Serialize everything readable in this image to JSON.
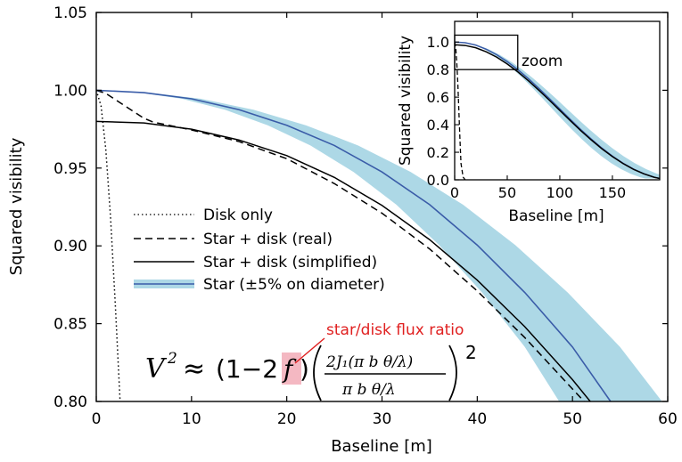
{
  "chart_data": [
    {
      "type": "line",
      "xlabel": "Baseline [m]",
      "ylabel": "Squared visibility",
      "xlim": [
        0,
        60
      ],
      "ylim": [
        0.8,
        1.05
      ],
      "xticks": [
        "0",
        "10",
        "20",
        "30",
        "40",
        "50",
        "60"
      ],
      "yticks": [
        "0.80",
        "0.85",
        "0.90",
        "0.95",
        "1.00",
        "1.05"
      ],
      "grid": false,
      "legend_position": "center-left",
      "series": [
        {
          "name": "Disk only",
          "style": "dotted",
          "color": "#000000",
          "x": [
            0,
            0.5,
            1,
            1.5,
            2,
            2.5,
            2.8
          ],
          "y": [
            1.0,
            0.99,
            0.962,
            0.918,
            0.862,
            0.8,
            0.765
          ]
        },
        {
          "name": "Star + disk (real)",
          "style": "dashed",
          "color": "#000000",
          "x": [
            0,
            1,
            2,
            3,
            4,
            5,
            6,
            8,
            10,
            15,
            20,
            25,
            30,
            35,
            40,
            45,
            50,
            52
          ],
          "y": [
            1.0,
            0.998,
            0.994,
            0.99,
            0.986,
            0.982,
            0.9795,
            0.977,
            0.9745,
            0.967,
            0.956,
            0.94,
            0.921,
            0.898,
            0.871,
            0.841,
            0.808,
            0.795
          ]
        },
        {
          "name": "Star + disk (simplified)",
          "style": "solid",
          "color": "#000000",
          "x": [
            0,
            5,
            10,
            15,
            20,
            25,
            30,
            35,
            40,
            45,
            50,
            52
          ],
          "y": [
            0.98,
            0.979,
            0.975,
            0.968,
            0.958,
            0.944,
            0.926,
            0.904,
            0.878,
            0.848,
            0.814,
            0.799
          ]
        },
        {
          "name": "Star (±5% on diameter)",
          "style": "solid",
          "color": "#3a5ca8",
          "band_color": "#add8e6",
          "x": [
            0,
            5,
            10,
            15,
            20,
            25,
            30,
            35,
            40,
            45,
            50,
            54
          ],
          "y": [
            1.0,
            0.9985,
            0.9945,
            0.9875,
            0.9775,
            0.9645,
            0.9475,
            0.9265,
            0.9005,
            0.87,
            0.835,
            0.8
          ],
          "band_frac": 0.1
        }
      ],
      "annotation": {
        "text": "star/disk flux ratio",
        "color": "#e02020",
        "highlight": "#f4b8c2"
      },
      "formula": {
        "lhs": "V",
        "sup": "2",
        "approx": "≈",
        "paren_open": "(1−2",
        "f": "f",
        "paren_close": ")",
        "num": "2J₁(π b θ/λ)",
        "den": "π b θ/λ",
        "outer_sup": "2"
      }
    },
    {
      "type": "line",
      "xlabel": "Baseline [m]",
      "ylabel": "Squared visibility",
      "xlim": [
        0,
        195
      ],
      "ylim": [
        0.0,
        1.15
      ],
      "xticks": [
        "0",
        "50",
        "100",
        "150"
      ],
      "yticks": [
        "0.0",
        "0.2",
        "0.4",
        "0.6",
        "0.8",
        "1.0"
      ],
      "zoom_label": "zoom",
      "zoom_box": {
        "x": [
          0,
          60
        ],
        "y": [
          0.8,
          1.05
        ]
      },
      "star_x": [
        0,
        10,
        20,
        30,
        40,
        50,
        60,
        70,
        80,
        90,
        100,
        110,
        120,
        130,
        140,
        150,
        160,
        170,
        180,
        190,
        195
      ],
      "star_y": [
        1.0,
        0.995,
        0.978,
        0.948,
        0.908,
        0.858,
        0.8,
        0.735,
        0.664,
        0.59,
        0.514,
        0.438,
        0.364,
        0.295,
        0.23,
        0.172,
        0.121,
        0.078,
        0.044,
        0.018,
        0.01
      ],
      "disk_x": [
        0,
        1,
        2,
        3,
        4,
        5,
        6,
        8,
        10
      ],
      "disk_y": [
        1.0,
        0.96,
        0.85,
        0.7,
        0.5,
        0.3,
        0.12,
        0.02,
        0.0
      ]
    }
  ]
}
